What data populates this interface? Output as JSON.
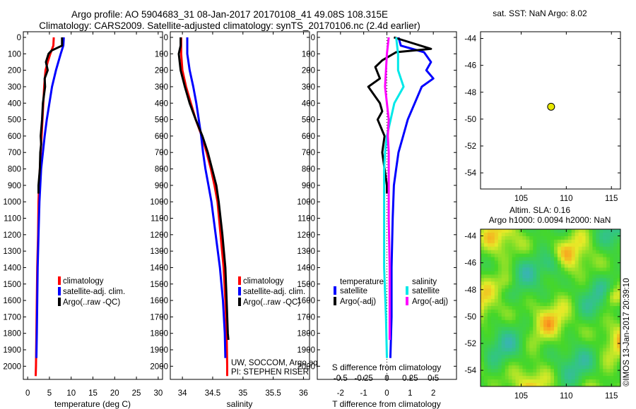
{
  "title": {
    "line1": "Argo profile: AO 5904683_31 08-Jan-2017 20170108_41 49.08S 108.315E",
    "line2": "Climatology: CARS2009. Satellite-adjusted climatology: synTS_20170106.nc (2.4d earlier)"
  },
  "colors": {
    "climatology": "#ff0000",
    "satellite": "#0000ff",
    "argo": "#000000",
    "sal_satellite": "#00e8e8",
    "sal_argo": "#ff00ff",
    "marker": "#e8e800"
  },
  "depth_axis": {
    "ylim": [
      0,
      2080
    ],
    "ticks": [
      0,
      100,
      200,
      300,
      400,
      500,
      600,
      700,
      800,
      900,
      1000,
      1100,
      1200,
      1300,
      1400,
      1500,
      1600,
      1700,
      1800,
      1900,
      2000
    ]
  },
  "panels": {
    "temperature": {
      "xlabel": "temperature (deg C)",
      "xlim": [
        -1,
        31
      ],
      "xticks": [
        0,
        5,
        10,
        15,
        20,
        25,
        30
      ],
      "legend": [
        "climatology",
        "satellite-adj. clim.",
        "Argo(..raw -QC)"
      ]
    },
    "salinity": {
      "xlabel": "salinity",
      "xlim": [
        33.8,
        36.1
      ],
      "xticks": [
        34,
        34.5,
        35,
        35.5,
        36
      ],
      "legend": [
        "climatology",
        "satellite-adj. clim.",
        "Argo(..raw -QC)"
      ],
      "note1": "UW, SOCCOM, Argo equivalent",
      "note2": "PI: STEPHEN RISER"
    },
    "difference": {
      "xlabel": "T difference from climatology",
      "xlabel_top": "S difference from climatology",
      "xlim": [
        -3,
        3
      ],
      "xticks": [
        -2,
        -1,
        0,
        1,
        2
      ],
      "sticks": [
        "-0.5",
        "-0.25",
        "0",
        "0.25",
        "0.5"
      ],
      "legend_t_title": "temperature",
      "legend_s_title": "salinity",
      "legend_t": [
        "satellite",
        "Argo(-adj)"
      ],
      "legend_s": [
        "satellite",
        "Argo(-adj)"
      ]
    }
  },
  "map_sst": {
    "title": "sat. SST: NaN Argo: 8.02",
    "xlim": [
      100.5,
      116
    ],
    "ylim": [
      -55.2,
      -43.5
    ],
    "xticks": [
      105,
      110,
      115
    ],
    "yticks": [
      -44,
      -46,
      -48,
      -50,
      -52,
      -54
    ],
    "point": {
      "lon": 108.315,
      "lat": -49.08
    }
  },
  "map_sla": {
    "title1": "Altim. SLA: 0.16",
    "title2": "Argo h1000: 0.0094 h2000: NaN",
    "xlim": [
      100.5,
      116
    ],
    "ylim": [
      -55.2,
      -43.5
    ],
    "xticks": [
      105,
      110,
      115
    ],
    "yticks": [
      -44,
      -46,
      -48,
      -50,
      -52,
      -54
    ],
    "credit": "©IMOS 13-Jan-2017 20:39:10"
  },
  "chart_data": [
    {
      "type": "line",
      "title": "",
      "xlabel": "temperature (deg C)",
      "ylabel": "",
      "xlim": [
        -1,
        31
      ],
      "ylim": [
        0,
        2080
      ],
      "series": [
        {
          "name": "climatology",
          "color": "#ff0000",
          "points": [
            [
              6,
              0
            ],
            [
              5.9,
              50
            ],
            [
              5.2,
              100
            ],
            [
              4.6,
              150
            ],
            [
              4.1,
              200
            ],
            [
              3.8,
              300
            ],
            [
              3.6,
              400
            ],
            [
              3.4,
              500
            ],
            [
              3.2,
              600
            ],
            [
              3.0,
              700
            ],
            [
              2.8,
              800
            ],
            [
              2.6,
              900
            ],
            [
              2.5,
              1000
            ],
            [
              2.4,
              1200
            ],
            [
              2.2,
              1400
            ],
            [
              2.1,
              1600
            ],
            [
              2.0,
              1800
            ],
            [
              1.9,
              2000
            ],
            [
              1.85,
              2060
            ]
          ]
        },
        {
          "name": "satellite-adj. clim.",
          "color": "#0000ff",
          "points": [
            [
              8.3,
              0
            ],
            [
              8.2,
              50
            ],
            [
              7.6,
              100
            ],
            [
              6.5,
              200
            ],
            [
              5.6,
              300
            ],
            [
              5.0,
              400
            ],
            [
              4.4,
              500
            ],
            [
              3.9,
              600
            ],
            [
              3.5,
              700
            ],
            [
              3.1,
              800
            ],
            [
              2.9,
              900
            ],
            [
              2.7,
              1000
            ],
            [
              2.5,
              1200
            ],
            [
              2.3,
              1400
            ],
            [
              2.2,
              1600
            ],
            [
              2.1,
              1800
            ],
            [
              2.0,
              1950
            ]
          ]
        },
        {
          "name": "Argo(..raw -QC)",
          "color": "#000000",
          "points": [
            [
              7.9,
              0
            ],
            [
              7.9,
              50
            ],
            [
              5.5,
              80
            ],
            [
              4.8,
              100
            ],
            [
              4.2,
              150
            ],
            [
              4.6,
              200
            ],
            [
              3.9,
              250
            ],
            [
              4.0,
              300
            ],
            [
              3.5,
              400
            ],
            [
              3.3,
              500
            ],
            [
              3.0,
              600
            ],
            [
              3.1,
              650
            ],
            [
              2.9,
              700
            ],
            [
              2.8,
              800
            ],
            [
              2.5,
              900
            ],
            [
              2.5,
              950
            ]
          ]
        }
      ]
    },
    {
      "type": "line",
      "title": "",
      "xlabel": "salinity",
      "ylabel": "",
      "xlim": [
        33.8,
        36.1
      ],
      "ylim": [
        0,
        2080
      ],
      "series": [
        {
          "name": "climatology",
          "color": "#ff0000",
          "points": [
            [
              33.98,
              0
            ],
            [
              33.98,
              100
            ],
            [
              34.0,
              200
            ],
            [
              34.06,
              300
            ],
            [
              34.14,
              400
            ],
            [
              34.22,
              500
            ],
            [
              34.32,
              600
            ],
            [
              34.4,
              700
            ],
            [
              34.47,
              800
            ],
            [
              34.53,
              900
            ],
            [
              34.58,
              1000
            ],
            [
              34.63,
              1200
            ],
            [
              34.68,
              1400
            ],
            [
              34.71,
              1600
            ],
            [
              34.73,
              1800
            ],
            [
              34.74,
              2000
            ],
            [
              34.74,
              2060
            ]
          ]
        },
        {
          "name": "satellite-adj. clim.",
          "color": "#0000ff",
          "points": [
            [
              34.08,
              0
            ],
            [
              34.08,
              100
            ],
            [
              34.12,
              200
            ],
            [
              34.18,
              300
            ],
            [
              34.23,
              400
            ],
            [
              34.27,
              500
            ],
            [
              34.31,
              600
            ],
            [
              34.34,
              700
            ],
            [
              34.38,
              800
            ],
            [
              34.43,
              900
            ],
            [
              34.48,
              1000
            ],
            [
              34.55,
              1200
            ],
            [
              34.62,
              1400
            ],
            [
              34.67,
              1600
            ],
            [
              34.7,
              1800
            ],
            [
              34.71,
              1950
            ]
          ]
        },
        {
          "name": "Argo(..raw -QC)",
          "color": "#000000",
          "points": [
            [
              33.97,
              0
            ],
            [
              33.97,
              50
            ],
            [
              33.94,
              100
            ],
            [
              33.97,
              200
            ],
            [
              34.04,
              300
            ],
            [
              34.12,
              400
            ],
            [
              34.22,
              500
            ],
            [
              34.33,
              600
            ],
            [
              34.42,
              700
            ],
            [
              34.49,
              800
            ],
            [
              34.56,
              900
            ],
            [
              34.6,
              1000
            ],
            [
              34.66,
              1200
            ],
            [
              34.71,
              1400
            ],
            [
              34.73,
              1600
            ],
            [
              34.75,
              1800
            ],
            [
              34.76,
              1840
            ]
          ]
        }
      ]
    },
    {
      "type": "line",
      "title": "",
      "xlabel": "T difference from climatology",
      "ylabel": "",
      "xlim": [
        -3,
        3
      ],
      "ylim": [
        0,
        2080
      ],
      "series": [
        {
          "name": "satellite",
          "color": "#0000ff",
          "points": [
            [
              0.5,
              0
            ],
            [
              0.6,
              50
            ],
            [
              1.6,
              90
            ],
            [
              1.9,
              150
            ],
            [
              1.7,
              200
            ],
            [
              2.0,
              250
            ],
            [
              1.5,
              300
            ],
            [
              1.2,
              400
            ],
            [
              0.9,
              500
            ],
            [
              0.7,
              600
            ],
            [
              0.5,
              700
            ],
            [
              0.4,
              800
            ],
            [
              0.3,
              900
            ],
            [
              0.25,
              1100
            ],
            [
              0.2,
              1400
            ],
            [
              0.2,
              1700
            ],
            [
              0.15,
              1950
            ]
          ]
        },
        {
          "name": "Argo(-adj)",
          "color": "#000000",
          "points": [
            [
              0.3,
              0
            ],
            [
              1.9,
              70
            ],
            [
              0.4,
              90
            ],
            [
              -0.2,
              140
            ],
            [
              -0.5,
              180
            ],
            [
              -0.3,
              250
            ],
            [
              -0.8,
              300
            ],
            [
              -0.3,
              400
            ],
            [
              -0.2,
              450
            ],
            [
              -0.4,
              500
            ],
            [
              -0.1,
              600
            ],
            [
              -0.2,
              700
            ],
            [
              -0.1,
              800
            ],
            [
              0,
              900
            ],
            [
              0,
              950
            ]
          ]
        }
      ]
    },
    {
      "type": "line",
      "title": "",
      "xlabel": "S difference from climatology",
      "ylabel": "",
      "xlim": [
        -0.75,
        0.75
      ],
      "ylim": [
        0,
        2080
      ],
      "series": [
        {
          "name": "satellite",
          "color": "#00e8e8",
          "points": [
            [
              0.1,
              0
            ],
            [
              0.12,
              100
            ],
            [
              0.12,
              200
            ],
            [
              0.18,
              300
            ],
            [
              0.08,
              400
            ],
            [
              0.04,
              500
            ],
            [
              0.0,
              600
            ],
            [
              -0.02,
              700
            ],
            [
              -0.03,
              800
            ],
            [
              -0.03,
              900
            ],
            [
              -0.03,
              1000
            ],
            [
              -0.03,
              1400
            ],
            [
              -0.01,
              1700
            ],
            [
              0,
              1950
            ]
          ]
        },
        {
          "name": "Argo(-adj)",
          "color": "#ff00ff",
          "points": [
            [
              0.02,
              0
            ],
            [
              0.0,
              100
            ],
            [
              -0.01,
              200
            ],
            [
              -0.02,
              300
            ],
            [
              0.0,
              400
            ],
            [
              0.02,
              500
            ],
            [
              0.01,
              600
            ],
            [
              0.02,
              700
            ],
            [
              0.02,
              900
            ],
            [
              0.02,
              1100
            ],
            [
              0.03,
              1400
            ],
            [
              0.03,
              1700
            ],
            [
              0.03,
              1840
            ]
          ]
        }
      ]
    },
    {
      "type": "scatter",
      "title": "sat. SST: NaN Argo: 8.02",
      "xlabel": "",
      "ylabel": "",
      "xlim": [
        100.5,
        116
      ],
      "ylim": [
        -55.2,
        -43.5
      ],
      "series": [
        {
          "name": "",
          "color": "#e8e800",
          "points": [
            [
              108.315,
              -49.08
            ]
          ]
        }
      ]
    },
    {
      "type": "heatmap",
      "title": "Altim. SLA: 0.16",
      "xlabel": "",
      "ylabel": "",
      "xlim": [
        100.5,
        116
      ],
      "ylim": [
        -55.2,
        -43.5
      ],
      "series": []
    }
  ]
}
